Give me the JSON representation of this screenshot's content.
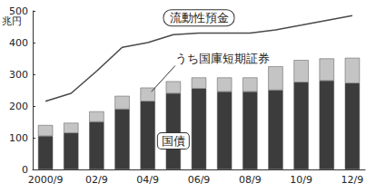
{
  "chart_data": {
    "type": "bar",
    "y_label": "兆円",
    "categories": [
      "2000/9",
      null,
      "02/9",
      null,
      "04/9",
      null,
      "06/9",
      null,
      "08/9",
      null,
      "10/9",
      null,
      "12/9"
    ],
    "series": [
      {
        "name": "国債",
        "type": "bar",
        "color": "#3c3c3c",
        "values": [
          105,
          115,
          150,
          190,
          215,
          240,
          255,
          245,
          245,
          250,
          275,
          280,
          272
        ]
      },
      {
        "name": "うち国庫短期証券",
        "type": "bar",
        "color": "#c4c4c4",
        "values": [
          35,
          32,
          33,
          42,
          43,
          38,
          35,
          45,
          45,
          75,
          70,
          70,
          80
        ]
      },
      {
        "name": "流動性預金",
        "type": "line",
        "color": "#4a4a4a",
        "values": [
          215,
          240,
          310,
          385,
          400,
          425,
          430,
          430,
          430,
          440,
          455,
          470,
          485
        ]
      }
    ],
    "stacked": true,
    "ylim": [
      0,
      500
    ],
    "yticks": [
      0,
      100,
      200,
      300,
      400,
      500
    ],
    "grid": false
  }
}
